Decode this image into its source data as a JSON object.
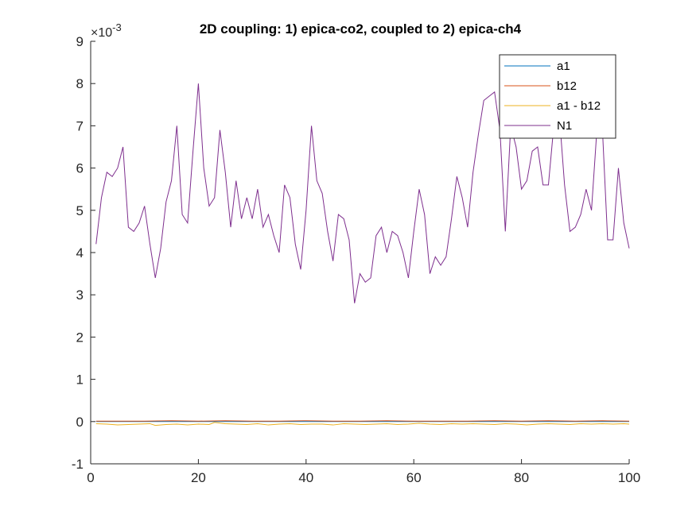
{
  "chart_data": {
    "type": "line",
    "title": "2D coupling: 1) epica-co2, coupled to 2) epica-ch4",
    "xlabel": "",
    "ylabel": "",
    "xlim": [
      0,
      100
    ],
    "ylim": [
      -1,
      9
    ],
    "y_exponent": {
      "base": "×10",
      "power": "-3"
    },
    "x_ticks": [
      "0",
      "20",
      "40",
      "60",
      "80",
      "100"
    ],
    "y_ticks": [
      "-1",
      "0",
      "1",
      "2",
      "3",
      "4",
      "5",
      "6",
      "7",
      "8",
      "9"
    ],
    "grid": false,
    "legend_position": "top-right",
    "series": [
      {
        "name": "a1",
        "color": "#0072BD",
        "x": [
          1,
          2,
          3,
          4,
          5,
          6,
          7,
          8,
          9,
          10,
          11,
          12,
          13,
          14,
          15,
          16,
          17,
          18,
          19,
          20,
          21,
          22,
          23,
          24,
          25,
          26,
          27,
          28,
          29,
          30,
          31,
          32,
          33,
          34,
          35,
          36,
          37,
          38,
          39,
          40,
          41,
          42,
          43,
          44,
          45,
          46,
          47,
          48,
          49,
          50,
          51,
          52,
          53,
          54,
          55,
          56,
          57,
          58,
          59,
          60,
          61,
          62,
          63,
          64,
          65,
          66,
          67,
          68,
          69,
          70,
          71,
          72,
          73,
          74,
          75,
          76,
          77,
          78,
          79,
          80,
          81,
          82,
          83,
          84,
          85,
          86,
          87,
          88,
          89,
          90,
          91,
          92,
          93,
          94,
          95,
          96,
          97,
          98,
          99,
          100
        ],
        "y": [
          0,
          0,
          0,
          0,
          0,
          0,
          0,
          0,
          0,
          0,
          0,
          0,
          0,
          0,
          0,
          0,
          0,
          0,
          0,
          0,
          0,
          0,
          0,
          0,
          0,
          0,
          0,
          0,
          0,
          0,
          0,
          0,
          0,
          0,
          0,
          0,
          0,
          0,
          0,
          0,
          0,
          0,
          0,
          0,
          0,
          0,
          0,
          0,
          0,
          0,
          0,
          0,
          0,
          0,
          0,
          0,
          0,
          0,
          0,
          0,
          0,
          0,
          0,
          0,
          0,
          0,
          0,
          0,
          0,
          0,
          0,
          0,
          0,
          0,
          0,
          0,
          0,
          0,
          0,
          0,
          0,
          0,
          0,
          0,
          0,
          0,
          0,
          0,
          0,
          0,
          0,
          0,
          0,
          0,
          0,
          0,
          0,
          0,
          0,
          0
        ]
      },
      {
        "name": "b12",
        "color": "#D95319",
        "x": [
          1,
          5,
          10,
          15,
          20,
          25,
          30,
          35,
          40,
          45,
          50,
          55,
          60,
          65,
          70,
          75,
          80,
          85,
          90,
          95,
          100
        ],
        "y": [
          0.01,
          0.01,
          0.01,
          0.02,
          0.01,
          0.02,
          0.01,
          0.01,
          0.02,
          0.01,
          0.01,
          0.02,
          0.01,
          0.01,
          0.01,
          0.02,
          0.01,
          0.02,
          0.01,
          0.02,
          0.01
        ]
      },
      {
        "name": "a1 - b12",
        "color": "#EDB120",
        "x": [
          1,
          3,
          5,
          7,
          9,
          11,
          12,
          14,
          16,
          18,
          20,
          22,
          23,
          25,
          27,
          29,
          31,
          33,
          35,
          37,
          39,
          41,
          43,
          45,
          47,
          49,
          51,
          53,
          55,
          57,
          59,
          61,
          63,
          65,
          67,
          69,
          71,
          73,
          75,
          77,
          79,
          81,
          83,
          85,
          87,
          89,
          91,
          93,
          95,
          97,
          99,
          100
        ],
        "y": [
          -0.05,
          -0.06,
          -0.08,
          -0.07,
          -0.06,
          -0.05,
          -0.09,
          -0.07,
          -0.06,
          -0.08,
          -0.06,
          -0.07,
          -0.02,
          -0.05,
          -0.06,
          -0.07,
          -0.05,
          -0.08,
          -0.06,
          -0.05,
          -0.07,
          -0.06,
          -0.06,
          -0.08,
          -0.05,
          -0.06,
          -0.07,
          -0.06,
          -0.05,
          -0.07,
          -0.06,
          -0.04,
          -0.06,
          -0.07,
          -0.05,
          -0.06,
          -0.05,
          -0.06,
          -0.07,
          -0.05,
          -0.06,
          -0.08,
          -0.06,
          -0.05,
          -0.06,
          -0.07,
          -0.05,
          -0.06,
          -0.05,
          -0.06,
          -0.05,
          -0.06
        ]
      },
      {
        "name": "N1",
        "color": "#7E2F8E",
        "x": [
          1,
          2,
          3,
          4,
          5,
          6,
          7,
          8,
          9,
          10,
          11,
          12,
          13,
          14,
          15,
          16,
          17,
          18,
          19,
          20,
          21,
          22,
          23,
          24,
          25,
          26,
          27,
          28,
          29,
          30,
          31,
          32,
          33,
          34,
          35,
          36,
          37,
          38,
          39,
          40,
          41,
          42,
          43,
          44,
          45,
          46,
          47,
          48,
          49,
          50,
          51,
          52,
          53,
          54,
          55,
          56,
          57,
          58,
          59,
          60,
          61,
          62,
          63,
          64,
          65,
          66,
          67,
          68,
          69,
          70,
          71,
          72,
          73,
          74,
          75,
          76,
          77,
          78,
          79,
          80,
          81,
          82,
          83,
          84,
          85,
          86,
          87,
          88,
          89,
          90,
          91,
          92,
          93,
          94,
          95,
          96,
          97,
          98,
          99,
          100
        ],
        "y": [
          4.2,
          5.3,
          5.9,
          5.8,
          6.0,
          6.5,
          4.6,
          4.5,
          4.7,
          5.1,
          4.2,
          3.4,
          4.1,
          5.2,
          5.7,
          7.0,
          4.9,
          4.7,
          6.4,
          8.0,
          6.0,
          5.1,
          5.3,
          6.9,
          5.9,
          4.6,
          5.7,
          4.8,
          5.3,
          4.8,
          5.5,
          4.6,
          4.9,
          4.4,
          4.0,
          5.6,
          5.3,
          4.2,
          3.6,
          5.0,
          7.0,
          5.7,
          5.4,
          4.5,
          3.8,
          4.9,
          4.8,
          4.3,
          2.8,
          3.5,
          3.3,
          3.4,
          4.4,
          4.6,
          4.0,
          4.5,
          4.4,
          4.0,
          3.4,
          4.5,
          5.5,
          4.9,
          3.5,
          3.9,
          3.7,
          3.9,
          4.8,
          5.8,
          5.3,
          4.6,
          5.9,
          6.8,
          7.6,
          7.7,
          7.8,
          6.9,
          4.5,
          7.0,
          6.5,
          5.5,
          5.7,
          6.4,
          6.5,
          5.6,
          5.6,
          7.0,
          7.3,
          5.6,
          4.5,
          4.6,
          4.9,
          5.5,
          5.0,
          6.9,
          7.0,
          4.3,
          4.3,
          6.0,
          4.7,
          4.1
        ]
      }
    ]
  }
}
